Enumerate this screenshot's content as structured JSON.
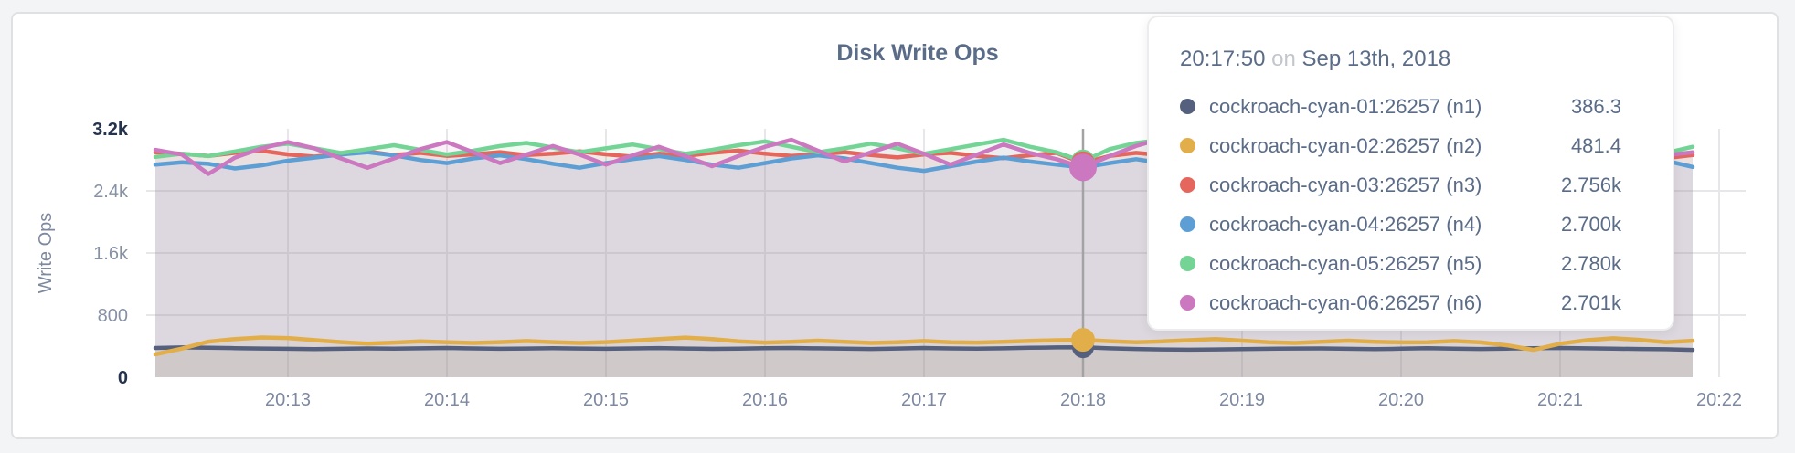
{
  "page": {
    "background": "#f3f4f5",
    "panel_border": "#e0e1e3"
  },
  "tooltip": {
    "time": "20:17:50",
    "connector": "on",
    "date": "Sep 13th, 2018",
    "rows": [
      {
        "name": "cockroach-cyan-01:26257 (n1)",
        "value": "386.3"
      },
      {
        "name": "cockroach-cyan-02:26257 (n2)",
        "value": "481.4"
      },
      {
        "name": "cockroach-cyan-03:26257 (n3)",
        "value": "2.756k"
      },
      {
        "name": "cockroach-cyan-04:26257 (n4)",
        "value": "2.700k"
      },
      {
        "name": "cockroach-cyan-05:26257 (n5)",
        "value": "2.780k"
      },
      {
        "name": "cockroach-cyan-06:26257 (n6)",
        "value": "2.701k"
      }
    ]
  },
  "chart_data": {
    "type": "line",
    "title": "Disk Write Ops",
    "xlabel": "",
    "ylabel": "Write Ops",
    "ylim": [
      0,
      3200
    ],
    "grid": true,
    "x_start": "20:12:10",
    "x_step_seconds": 10,
    "x_ticks": [
      "20:13",
      "20:14",
      "20:15",
      "20:16",
      "20:17",
      "20:18",
      "20:19",
      "20:20",
      "20:21",
      "20:22"
    ],
    "y_ticks": [
      {
        "label": "3.2k",
        "value": 3200,
        "emphasis": true
      },
      {
        "label": "2.4k",
        "value": 2400,
        "emphasis": false
      },
      {
        "label": "1.6k",
        "value": 1600,
        "emphasis": false
      },
      {
        "label": "800",
        "value": 800,
        "emphasis": false
      },
      {
        "label": "0",
        "value": 0,
        "emphasis": true
      }
    ],
    "hover_time": "20:17:50",
    "hover_index": 35,
    "series": [
      {
        "name": "cockroach-cyan-01:26257 (n1)",
        "color": "#54607e",
        "values": [
          376,
          384,
          380,
          374,
          370,
          366,
          362,
          366,
          371,
          368,
          372,
          376,
          371,
          366,
          369,
          373,
          370,
          366,
          371,
          375,
          370,
          365,
          368,
          373,
          377,
          372,
          367,
          364,
          370,
          376,
          371,
          367,
          372,
          379,
          383,
          386.3,
          372,
          364,
          358,
          354,
          358,
          362,
          366,
          370,
          371,
          366,
          361,
          367,
          373,
          368,
          363,
          368,
          373,
          377,
          372,
          367,
          363,
          360,
          352
        ]
      },
      {
        "name": "cockroach-cyan-02:26257 (n2)",
        "color": "#e2ae49",
        "values": [
          295,
          368,
          458,
          492,
          512,
          505,
          478,
          452,
          432,
          446,
          462,
          451,
          441,
          452,
          466,
          452,
          441,
          452,
          471,
          492,
          511,
          491,
          461,
          446,
          456,
          471,
          456,
          441,
          451,
          466,
          451,
          446,
          456,
          468,
          476,
          481.4,
          464,
          451,
          461,
          476,
          491,
          471,
          451,
          441,
          456,
          471,
          456,
          448,
          451,
          466,
          448,
          410,
          352,
          432,
          476,
          501,
          481,
          451,
          470
        ]
      },
      {
        "name": "cockroach-cyan-03:26257 (n3)",
        "color": "#e5665d",
        "values": [
          2898,
          2878,
          2849,
          2889,
          2918,
          2869,
          2841,
          2879,
          2909,
          2861,
          2889,
          2851,
          2871,
          2899,
          2861,
          2879,
          2909,
          2871,
          2841,
          2879,
          2851,
          2889,
          2919,
          2879,
          2851,
          2871,
          2899,
          2861,
          2831,
          2869,
          2889,
          2851,
          2821,
          2859,
          2889,
          2756,
          2849,
          2889,
          2859,
          2899,
          2869,
          2841,
          2879,
          2851,
          2889,
          2859,
          2831,
          2869,
          2899,
          2859,
          2841,
          2879,
          2909,
          2869,
          2851,
          2889,
          2859,
          2821,
          2861
        ]
      },
      {
        "name": "cockroach-cyan-04:26257 (n4)",
        "color": "#5d9fd5",
        "values": [
          2738,
          2768,
          2748,
          2688,
          2728,
          2788,
          2828,
          2868,
          2898,
          2858,
          2798,
          2758,
          2818,
          2858,
          2808,
          2748,
          2698,
          2758,
          2808,
          2848,
          2798,
          2738,
          2698,
          2758,
          2818,
          2858,
          2818,
          2758,
          2698,
          2658,
          2718,
          2778,
          2828,
          2778,
          2738,
          2700,
          2758,
          2808,
          2758,
          2698,
          2648,
          2718,
          2778,
          2828,
          2788,
          2738,
          2698,
          2758,
          2808,
          2768,
          2718,
          2768,
          2818,
          2778,
          2728,
          2778,
          2828,
          2788,
          2708
        ]
      },
      {
        "name": "cockroach-cyan-05:26257 (n5)",
        "color": "#73d495",
        "values": [
          2838,
          2878,
          2848,
          2908,
          2968,
          3008,
          2948,
          2888,
          2938,
          2988,
          2928,
          2868,
          2918,
          2978,
          3018,
          2958,
          2898,
          2948,
          2998,
          2938,
          2878,
          2928,
          2988,
          3038,
          2968,
          2898,
          2948,
          3008,
          2948,
          2878,
          2938,
          2998,
          3058,
          2968,
          2898,
          2780,
          2938,
          3018,
          3058,
          2988,
          2918,
          2968,
          3028,
          2958,
          2888,
          2948,
          3008,
          2938,
          2868,
          2928,
          2988,
          2928,
          2858,
          2918,
          2978,
          3028,
          2958,
          2888,
          2968
        ]
      },
      {
        "name": "cockroach-cyan-06:26257 (n6)",
        "color": "#cb78c1",
        "values": [
          2928,
          2868,
          2618,
          2828,
          2948,
          3028,
          2948,
          2818,
          2698,
          2818,
          2938,
          3028,
          2898,
          2758,
          2868,
          2978,
          2868,
          2738,
          2858,
          2968,
          2848,
          2718,
          2848,
          2968,
          3058,
          2918,
          2778,
          2898,
          3008,
          2878,
          2738,
          2868,
          2998,
          2888,
          2808,
          2701,
          2848,
          2978,
          3078,
          2938,
          2798,
          2918,
          3038,
          2898,
          2758,
          2888,
          3008,
          2868,
          2738,
          2878,
          2998,
          2858,
          2728,
          2868,
          2988,
          2848,
          2718,
          2858,
          2898
        ]
      }
    ]
  }
}
